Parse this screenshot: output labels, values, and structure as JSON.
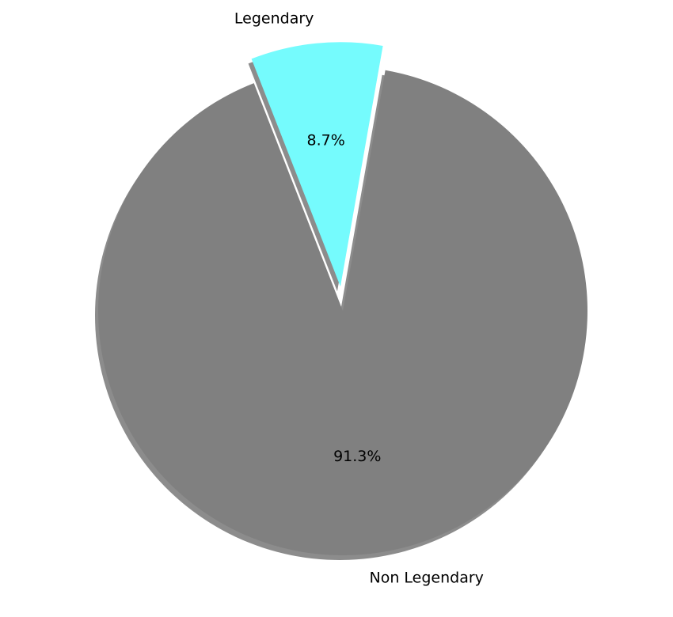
{
  "chart_data": {
    "type": "pie",
    "categories": [
      "Legendary",
      "Non Legendary"
    ],
    "values": [
      8.7,
      91.3
    ],
    "autopct_labels": [
      "8.7%",
      "91.3%"
    ],
    "colors": [
      "#75fbfd",
      "#808080"
    ],
    "shadow_color": "#8c8c8c",
    "explode": [
      0.1,
      0
    ],
    "shadow": true,
    "start_angle_deg": 80,
    "direction": "counterclockwise"
  }
}
